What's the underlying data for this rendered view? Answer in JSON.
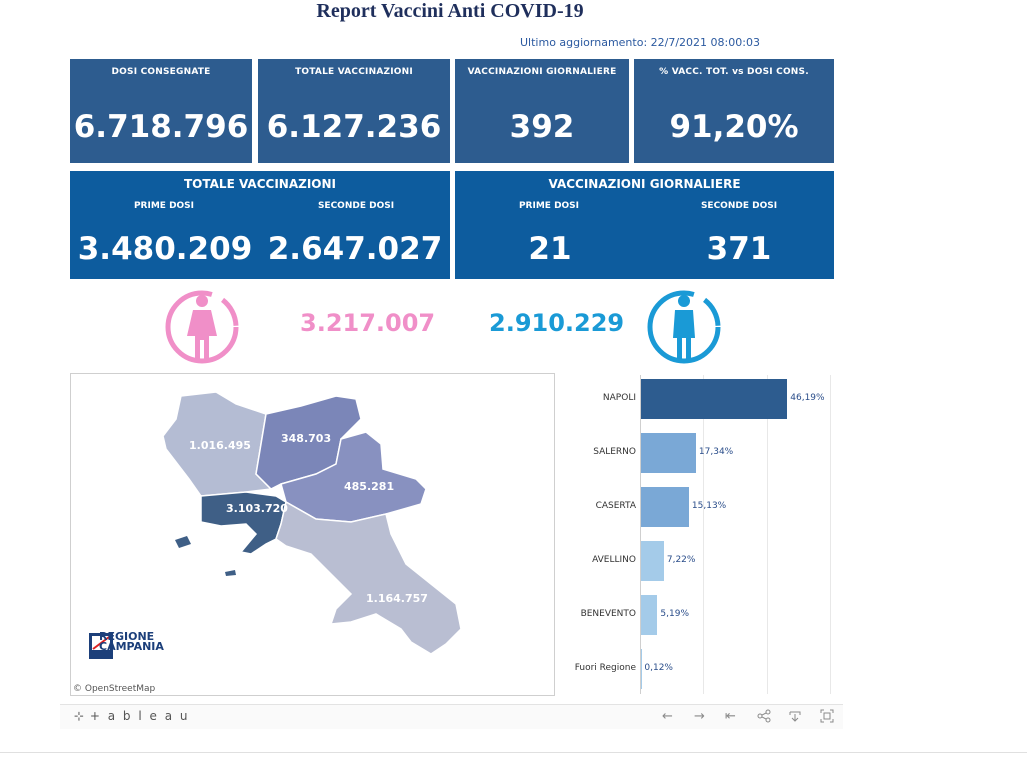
{
  "header": {
    "title": "Report Vaccini Anti COVID-19",
    "updated": "Ultimo aggiornamento: 22/7/2021 08:00:03"
  },
  "kpis": [
    {
      "label": "DOSI  CONSEGNATE",
      "value": "6.718.796"
    },
    {
      "label": "TOTALE VACCINAZIONI",
      "value": "6.127.236"
    },
    {
      "label": "VACCINAZIONI GIORNALIERE",
      "value": "392"
    },
    {
      "label": "% VACC. TOT. vs DOSI CONS.",
      "value": "91,20%"
    }
  ],
  "panels": {
    "totale": {
      "title": "TOTALE VACCINAZIONI",
      "first_label": "PRIME DOSI",
      "first_value": "3.480.209",
      "second_label": "SECONDE DOSI",
      "second_value": "2.647.027"
    },
    "giornaliere": {
      "title": "VACCINAZIONI GIORNALIERE",
      "first_label": "PRIME DOSI",
      "first_value": "21",
      "second_label": "SECONDE DOSI",
      "second_value": "371"
    }
  },
  "gender": {
    "female_value": "3.217.007",
    "male_value": "2.910.229",
    "female_color": "#f08fc8",
    "male_color": "#1a9ad6"
  },
  "map": {
    "provinces": [
      {
        "name": "Caserta",
        "value": "1.016.495"
      },
      {
        "name": "Benevento",
        "value": "348.703"
      },
      {
        "name": "Avellino",
        "value": "485.281"
      },
      {
        "name": "Napoli",
        "value": "3.103.720"
      },
      {
        "name": "Salerno",
        "value": "1.164.757"
      }
    ],
    "logo_line1": "REGIONE",
    "logo_line2": "CAMPANIA",
    "attribution": "© OpenStreetMap"
  },
  "chart_data": {
    "type": "bar",
    "orientation": "horizontal",
    "categories": [
      "NAPOLI",
      "SALERNO",
      "CASERTA",
      "AVELLINO",
      "BENEVENTO",
      "Fuori Regione"
    ],
    "values": [
      46.19,
      17.34,
      15.13,
      7.22,
      5.19,
      0.12
    ],
    "labels": [
      "46,19%",
      "17,34%",
      "15,13%",
      "7,22%",
      "5,19%",
      "0,12%"
    ],
    "colors": [
      "#2d5c8f",
      "#7aa8d6",
      "#7aa8d6",
      "#a4cbe9",
      "#a4cbe9",
      "#a4cbe9"
    ],
    "xlim": [
      0,
      60
    ],
    "grid": true
  },
  "footer": {
    "brand": "+ a b l e a u",
    "tools": [
      "←",
      "→",
      "⇤",
      "share-icon",
      "download-icon",
      "fullscreen-icon"
    ]
  }
}
